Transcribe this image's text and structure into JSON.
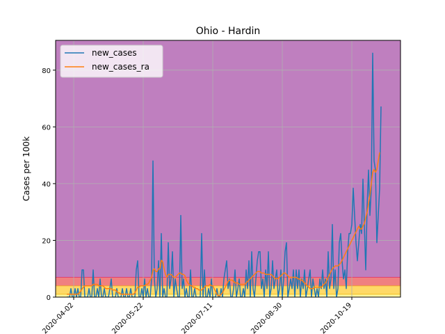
{
  "chart_data": {
    "type": "line",
    "title": "Ohio - Hardin",
    "xlabel": "",
    "ylabel": "Cases per 100k",
    "x_start": "2020-03-28",
    "x_end": "2020-11-12",
    "xlim": [
      "2020-03-20",
      "2020-11-23"
    ],
    "ylim": [
      0,
      90.5
    ],
    "yticks": [
      0,
      20,
      40,
      60,
      80
    ],
    "xticks": [
      "2020-04-02",
      "2020-05-22",
      "2020-07-11",
      "2020-08-30",
      "2020-10-19"
    ],
    "grid": true,
    "legend_position": "top-left",
    "background_bands": [
      {
        "from": 0,
        "to": 1,
        "color": "#fff5a0"
      },
      {
        "from": 1,
        "to": 4,
        "color": "#ffd966"
      },
      {
        "from": 4,
        "to": 7,
        "color": "#f08080"
      },
      {
        "from": 7,
        "to": 90.5,
        "color": "#bf7fbf"
      }
    ],
    "series": [
      {
        "name": "new_cases",
        "color": "#1f77b4",
        "values": [
          0,
          0,
          0,
          3,
          0,
          0,
          3,
          0,
          3,
          0,
          0,
          9.6,
          9.6,
          0,
          0,
          0,
          3,
          0,
          0,
          9.6,
          0,
          0,
          3,
          0,
          6.4,
          0,
          0,
          3,
          0,
          0,
          0,
          3,
          6.4,
          0,
          0,
          0,
          3,
          0,
          0,
          0,
          3,
          0,
          0,
          3,
          0,
          0,
          3,
          0,
          0,
          0,
          9.6,
          12.8,
          0,
          0,
          3,
          0,
          6.4,
          0,
          3,
          0,
          0,
          6.4,
          48,
          6.4,
          0,
          3,
          12.8,
          0,
          22.4,
          0,
          3,
          0,
          0,
          19.2,
          3,
          6.4,
          16,
          0,
          6.4,
          3,
          0,
          0,
          28.8,
          3,
          6.4,
          0,
          3,
          0,
          0,
          9.6,
          0,
          0,
          3,
          0,
          0,
          0,
          0,
          22.4,
          0,
          9.6,
          0,
          0,
          3,
          0,
          6.4,
          0,
          0,
          0,
          3,
          0,
          0,
          3,
          0,
          6.4,
          9.6,
          12.8,
          3,
          6.4,
          0,
          0,
          3,
          9.6,
          0,
          3,
          6.4,
          0,
          0,
          3,
          0,
          9.6,
          3,
          12.8,
          0,
          16,
          3,
          0,
          6.4,
          12.8,
          16,
          16,
          3,
          6.4,
          0,
          9.6,
          3,
          16,
          0,
          3,
          12.8,
          3,
          6.4,
          9.6,
          0,
          3,
          9.6,
          0,
          6.4,
          16,
          19.2,
          0,
          3,
          6.4,
          3,
          9.6,
          0,
          9.6,
          3,
          9.6,
          0,
          6.4,
          3,
          9.6,
          0,
          3,
          6.4,
          9.6,
          0,
          6.4,
          3,
          0,
          3,
          0,
          6.4,
          3,
          9.6,
          3,
          6.4,
          0,
          16,
          3,
          6.4,
          25.6,
          3,
          9.6,
          0,
          3,
          19.2,
          22.4,
          12.8,
          6.4,
          9.6,
          3,
          16,
          22.4,
          22.4,
          25.6,
          38.4,
          28.8,
          19.2,
          12.8,
          19.2,
          25.6,
          22.4,
          41.6,
          25.6,
          9.6,
          32,
          44.8,
          28.8,
          38.4,
          86,
          48,
          44.8,
          19.2,
          28.8,
          38.4,
          67.2
        ]
      },
      {
        "name": "new_cases_ra",
        "color": "#ff7f0e",
        "values": [
          1,
          1,
          1,
          1,
          1,
          1,
          1,
          1,
          1,
          1.5,
          2,
          3,
          3.5,
          4,
          4,
          4,
          4,
          4,
          4,
          4.5,
          4.5,
          4.5,
          4.5,
          4,
          4,
          4,
          4,
          3.5,
          3,
          3,
          3,
          3,
          3,
          2.5,
          2.5,
          2.5,
          2,
          1.5,
          1.5,
          1,
          1,
          1,
          1,
          1,
          1,
          1,
          1,
          1,
          1,
          1.5,
          2.5,
          3.5,
          3.5,
          4,
          4,
          4,
          4,
          4.5,
          4.5,
          5,
          6,
          7,
          9.5,
          10,
          9,
          9,
          10,
          10,
          13,
          12.5,
          10,
          8,
          7,
          8,
          8,
          8,
          7.5,
          7,
          7,
          7.5,
          8,
          8.5,
          8.5,
          8,
          8,
          7.5,
          6,
          5,
          4.5,
          4,
          4,
          3.5,
          3.5,
          3,
          3,
          2.5,
          2.5,
          2.5,
          3,
          3.5,
          4,
          4,
          4,
          4.5,
          4,
          4,
          3,
          2,
          1,
          0.5,
          0.5,
          1,
          1.5,
          2.5,
          3.5,
          4.5,
          5.5,
          6,
          6,
          6,
          5.5,
          5,
          5,
          5,
          4.5,
          4.5,
          4.5,
          4.5,
          4.5,
          5,
          5.5,
          6,
          6.5,
          7,
          7.5,
          8,
          8.5,
          9,
          9,
          9,
          8.5,
          8.5,
          8.5,
          8,
          8,
          8,
          8,
          8,
          7.5,
          7,
          6.5,
          6.5,
          6.5,
          7,
          7.5,
          8,
          8.5,
          8.5,
          8,
          7.5,
          7,
          7,
          7,
          7,
          7,
          7,
          6.5,
          6.5,
          6,
          6,
          5.5,
          5,
          4.5,
          4,
          3.5,
          3,
          3,
          3,
          3.5,
          3.5,
          3.5,
          3.5,
          3.5,
          3.5,
          4,
          4.5,
          5,
          6,
          7,
          8,
          9,
          10,
          10.5,
          11,
          11,
          11,
          11.5,
          12,
          13,
          14,
          15,
          16,
          17,
          18,
          19,
          20,
          21,
          22,
          23,
          24,
          25,
          24,
          24,
          25,
          26,
          28,
          30,
          33,
          36,
          40,
          44,
          45,
          44,
          45,
          48,
          51
        ]
      }
    ]
  }
}
